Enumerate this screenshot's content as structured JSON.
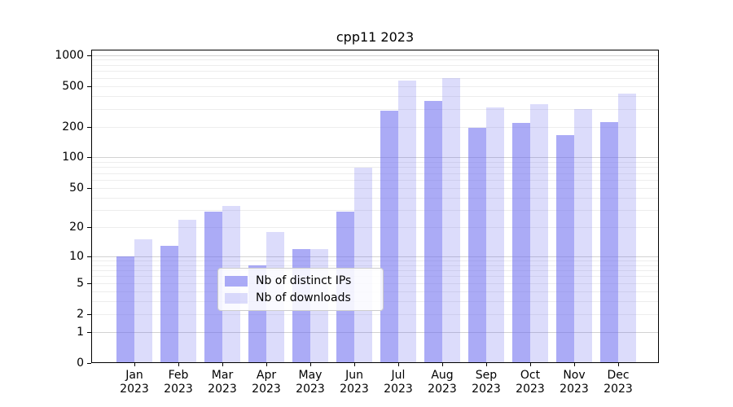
{
  "chart_data": {
    "type": "bar",
    "title": "cpp11 2023",
    "scale": "log1p",
    "grid": true,
    "legend_position": "lower center",
    "categories": [
      "Jan",
      "Feb",
      "Mar",
      "Apr",
      "May",
      "Jun",
      "Jul",
      "Aug",
      "Sep",
      "Oct",
      "Nov",
      "Dec"
    ],
    "category_year": "2023",
    "series": [
      {
        "name": "Nb of distinct IPs",
        "color": "rgba(110,110,240,0.58)",
        "values": [
          10,
          13,
          29,
          8,
          12,
          29,
          285,
          358,
          195,
          218,
          165,
          220
        ]
      },
      {
        "name": "Nb of downloads",
        "color": "rgba(110,110,240,0.24)",
        "values": [
          15,
          24,
          33,
          18,
          12,
          79,
          560,
          600,
          310,
          330,
          300,
          420
        ]
      }
    ],
    "yticks": [
      0,
      1,
      2,
      5,
      10,
      20,
      50,
      100,
      200,
      500,
      1000
    ],
    "ylim": [
      0,
      1130
    ],
    "axis_color": "#000000",
    "grid_minor_color": "#ededed",
    "grid_major_color": "#d2d2d2"
  }
}
